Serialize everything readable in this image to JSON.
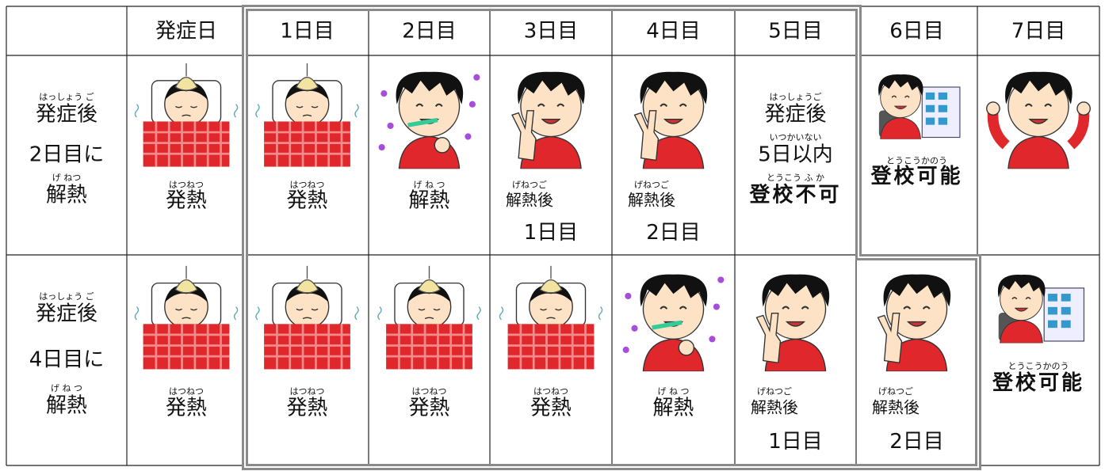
{
  "header": {
    "days": [
      "発症日",
      "1日目",
      "2日目",
      "3日目",
      "4日目",
      "5日目",
      "6日目",
      "7日目"
    ]
  },
  "rows": [
    {
      "label": [
        {
          "ruby": "はっしょう ご",
          "text": "発症後"
        },
        {
          "text": "2日目に"
        },
        {
          "ruby": "げ ねつ",
          "text": "解熱"
        }
      ],
      "cells": [
        {
          "ruby": "はつねつ",
          "text": "発熱"
        },
        {
          "ruby": "はつねつ",
          "text": "発熱"
        },
        {
          "ruby": "げ ね つ",
          "text": "解熱"
        },
        {
          "ruby": "げねつご",
          "text": "解熱後",
          "extra": "1日目"
        },
        {
          "ruby": "げねつご",
          "text": "解熱後",
          "extra": "2日目"
        },
        {
          "lines": [
            {
              "ruby": "はっしょうご",
              "text": "発症後"
            },
            {
              "ruby": "いつかいない",
              "text": "5日以内"
            },
            {
              "ruby": "とうこう ふ か",
              "text": "登校不可"
            }
          ]
        },
        {
          "ruby": "とうこうかのう",
          "text": "登校可能"
        },
        null
      ]
    },
    {
      "label": [
        {
          "ruby": "はっしょう ご",
          "text": "発症後"
        },
        {
          "text": "4日目に"
        },
        {
          "ruby": "げ ね つ",
          "text": "解熱"
        }
      ],
      "cells": [
        {
          "ruby": "はつねつ",
          "text": "発熱"
        },
        {
          "ruby": "はつねつ",
          "text": "発熱"
        },
        {
          "ruby": "はつねつ",
          "text": "発熱"
        },
        {
          "ruby": "はつねつ",
          "text": "発熱"
        },
        {
          "ruby": "げ ね つ",
          "text": "解熱"
        },
        {
          "ruby": "げねつご",
          "text": "解熱後",
          "extra": "1日目"
        },
        {
          "ruby": "げねつご",
          "text": "解熱後",
          "extra": "2日目"
        },
        {
          "ruby": "とうこうかのう",
          "text": "登校可能"
        }
      ]
    }
  ]
}
